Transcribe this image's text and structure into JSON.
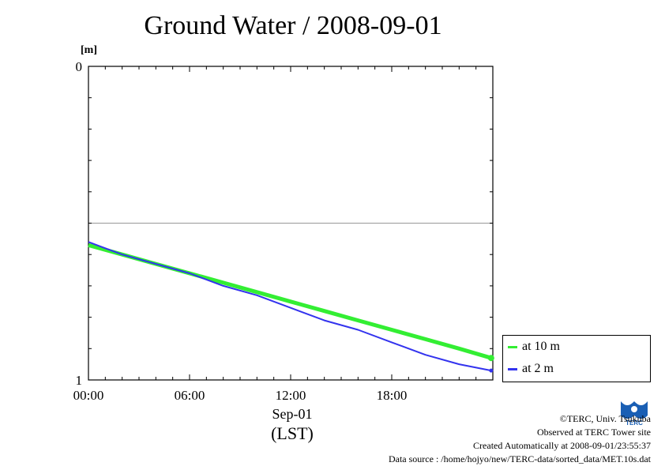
{
  "chart_data": {
    "type": "line",
    "title": "Ground Water / 2008-09-01",
    "y_unit": "[m]",
    "ylim": [
      0,
      1
    ],
    "y_inverted": true,
    "y_tick_labels": [
      "0",
      "1"
    ],
    "x_tick_labels": [
      "00:00",
      "06:00",
      "12:00",
      "18:00"
    ],
    "x_range_hours": [
      0,
      24
    ],
    "x_date_label": "Sep-01",
    "x_unit_label": "(LST)",
    "reference_line_y": 0.5,
    "grid": false,
    "legend_position": "right-bottom",
    "series": [
      {
        "name": "at 10 m",
        "color": "#33ee33",
        "x": [
          0,
          2,
          4,
          6,
          8,
          10,
          12,
          14,
          16,
          18,
          20,
          22,
          23.9
        ],
        "y": [
          0.57,
          0.6,
          0.63,
          0.66,
          0.69,
          0.72,
          0.75,
          0.78,
          0.81,
          0.84,
          0.87,
          0.9,
          0.93
        ]
      },
      {
        "name": "at 2 m",
        "color": "#3333ee",
        "x": [
          0,
          2,
          4,
          6,
          8,
          10,
          12,
          14,
          16,
          18,
          20,
          22,
          23.9
        ],
        "y": [
          0.56,
          0.6,
          0.63,
          0.66,
          0.7,
          0.73,
          0.77,
          0.81,
          0.84,
          0.88,
          0.92,
          0.95,
          0.97
        ]
      }
    ]
  },
  "credits": {
    "copyright": "©TERC, Univ. Tsukuba",
    "observed": "Observed at TERC Tower site",
    "created": "Created Automatically at 2008-09-01/23:55:37",
    "source": "Data source : /home/hojyo/new/TERC-data/sorted_data/MET.10s.dat"
  },
  "logo": {
    "icon": "terc-logo-icon",
    "text": "TERC",
    "color": "#1a5fb4"
  }
}
